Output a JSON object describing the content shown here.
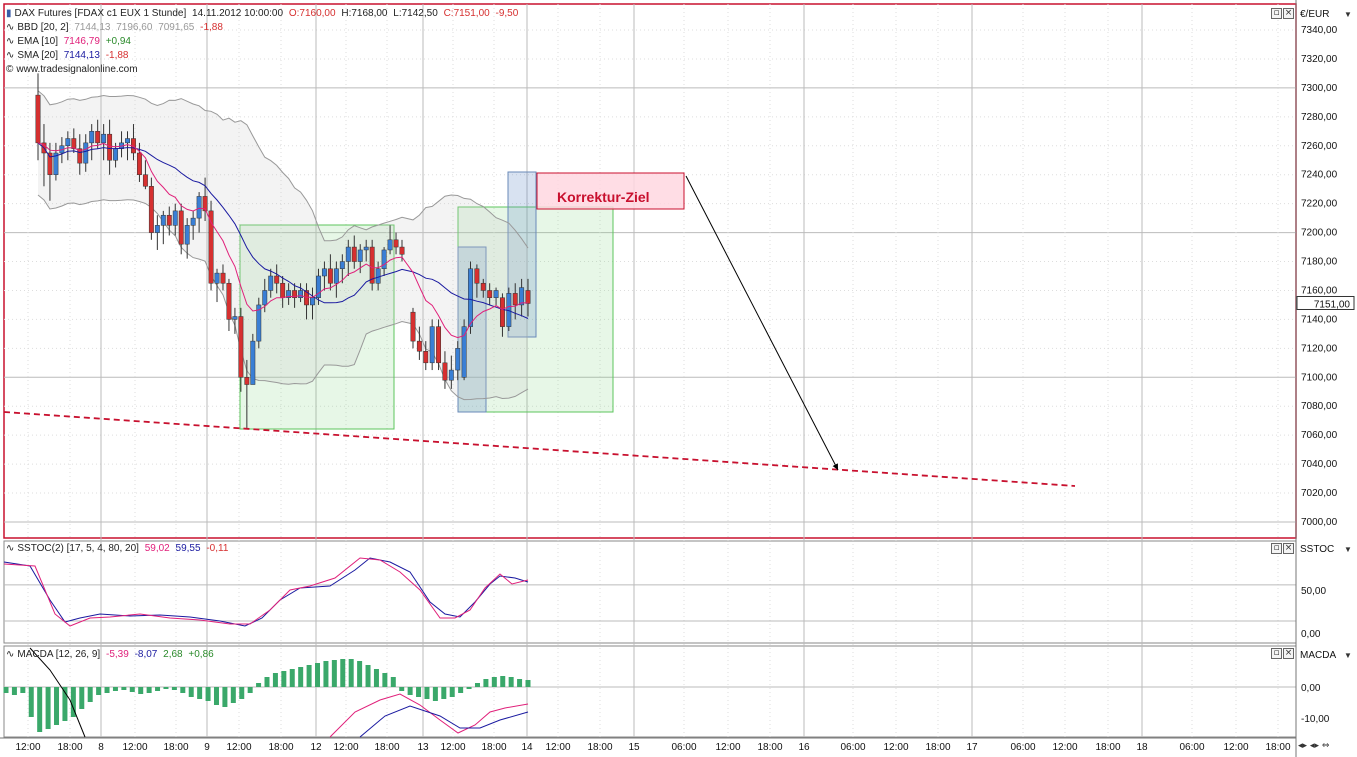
{
  "legend_main": {
    "row1": {
      "name": "DAX Futures [FDAX c1 EUX  1 Stunde]",
      "date": "14.11.2012 10:00:00",
      "open": "O:7160,00",
      "high": "H:7168,00",
      "low": "L:7142,50",
      "close": "C:7151,00",
      "change": "-9,50"
    },
    "row2": {
      "name": "BBD [20, 2]",
      "v1": "7144,13",
      "v2": "7196,60",
      "v3": "7091,65",
      "v4": "-1,88"
    },
    "row3": {
      "name": "EMA [10]",
      "v1": "7146,79",
      "v2": "+0,94"
    },
    "row4": {
      "name": "SMA [20]",
      "v1": "7144,13",
      "v2": "-1,88"
    },
    "row5": {
      "name": "www.tradesignalonline.com"
    }
  },
  "legend_sstoc": {
    "name": "SSTOC(2) [17, 5, 4, 80, 20]",
    "v1": "59,02",
    "v2": "59,55",
    "v3": "-0,11"
  },
  "legend_macd": {
    "name": "MACDA [12, 26, 9]",
    "v1": "-5,39",
    "v2": "-8,07",
    "v3": "2,68",
    "v4": "+0,86"
  },
  "panel_labels": {
    "main": "€/EUR",
    "sstoc": "SSTOC",
    "macd": "MACDA"
  },
  "price_label": "7151,00",
  "callout": "Korrektur-Ziel",
  "colors": {
    "bull": "#3a7fd5",
    "bear": "#d63030",
    "ema": "#e0207a",
    "sma": "#1a1aa0",
    "bb": "#999999",
    "box_green": "#5cc65c",
    "box_blue": "#6a8ab8",
    "trend": "#c8102e",
    "macd_hist": "#3aa86a"
  },
  "chart_data": {
    "type": "candlestick",
    "title": "DAX Futures [FDAX c1 EUX  1 Stunde]",
    "ylim": [
      6990,
      7350
    ],
    "yticks": [
      "7000,00",
      "7020,00",
      "7040,00",
      "7060,00",
      "7080,00",
      "7100,00",
      "7120,00",
      "7140,00",
      "7160,00",
      "7180,00",
      "7200,00",
      "7220,00",
      "7240,00",
      "7260,00",
      "7280,00",
      "7300,00",
      "7320,00",
      "7340,00"
    ],
    "xticks": [
      "12:00",
      "18:00",
      "8",
      "12:00",
      "18:00",
      "9",
      "12:00",
      "18:00",
      "12",
      "12:00",
      "18:00",
      "13",
      "12:00",
      "18:00",
      "14",
      "12:00",
      "18:00",
      "15",
      "06:00",
      "12:00",
      "18:00",
      "16",
      "06:00",
      "12:00",
      "18:00",
      "17",
      "06:00",
      "12:00",
      "18:00",
      "18",
      "06:00",
      "12:00",
      "18:00"
    ],
    "candles": [
      {
        "o": 7295,
        "h": 7310,
        "l": 7250,
        "c": 7262
      },
      {
        "o": 7262,
        "h": 7275,
        "l": 7232,
        "c": 7255
      },
      {
        "o": 7255,
        "h": 7262,
        "l": 7222,
        "c": 7240
      },
      {
        "o": 7240,
        "h": 7262,
        "l": 7236,
        "c": 7255
      },
      {
        "o": 7255,
        "h": 7266,
        "l": 7248,
        "c": 7260
      },
      {
        "o": 7260,
        "h": 7270,
        "l": 7250,
        "c": 7265
      },
      {
        "o": 7265,
        "h": 7272,
        "l": 7255,
        "c": 7258
      },
      {
        "o": 7258,
        "h": 7268,
        "l": 7240,
        "c": 7248
      },
      {
        "o": 7248,
        "h": 7268,
        "l": 7242,
        "c": 7262
      },
      {
        "o": 7262,
        "h": 7275,
        "l": 7250,
        "c": 7270
      },
      {
        "o": 7270,
        "h": 7278,
        "l": 7258,
        "c": 7262
      },
      {
        "o": 7262,
        "h": 7275,
        "l": 7250,
        "c": 7268
      },
      {
        "o": 7268,
        "h": 7278,
        "l": 7240,
        "c": 7250
      },
      {
        "o": 7250,
        "h": 7262,
        "l": 7245,
        "c": 7258
      },
      {
        "o": 7258,
        "h": 7270,
        "l": 7252,
        "c": 7262
      },
      {
        "o": 7262,
        "h": 7270,
        "l": 7250,
        "c": 7265
      },
      {
        "o": 7265,
        "h": 7275,
        "l": 7250,
        "c": 7255
      },
      {
        "o": 7255,
        "h": 7262,
        "l": 7235,
        "c": 7240
      },
      {
        "o": 7240,
        "h": 7250,
        "l": 7230,
        "c": 7232
      },
      {
        "o": 7232,
        "h": 7238,
        "l": 7195,
        "c": 7200
      },
      {
        "o": 7200,
        "h": 7212,
        "l": 7188,
        "c": 7205
      },
      {
        "o": 7205,
        "h": 7215,
        "l": 7192,
        "c": 7212
      },
      {
        "o": 7212,
        "h": 7218,
        "l": 7198,
        "c": 7205
      },
      {
        "o": 7205,
        "h": 7220,
        "l": 7198,
        "c": 7215
      },
      {
        "o": 7215,
        "h": 7220,
        "l": 7185,
        "c": 7192
      },
      {
        "o": 7192,
        "h": 7210,
        "l": 7182,
        "c": 7205
      },
      {
        "o": 7205,
        "h": 7215,
        "l": 7195,
        "c": 7210
      },
      {
        "o": 7210,
        "h": 7228,
        "l": 7200,
        "c": 7225
      },
      {
        "o": 7225,
        "h": 7238,
        "l": 7208,
        "c": 7215
      },
      {
        "o": 7215,
        "h": 7222,
        "l": 7160,
        "c": 7165
      },
      {
        "o": 7165,
        "h": 7175,
        "l": 7152,
        "c": 7172
      },
      {
        "o": 7172,
        "h": 7178,
        "l": 7160,
        "c": 7165
      },
      {
        "o": 7165,
        "h": 7168,
        "l": 7132,
        "c": 7140
      },
      {
        "o": 7140,
        "h": 7148,
        "l": 7130,
        "c": 7142
      },
      {
        "o": 7142,
        "h": 7148,
        "l": 7090,
        "c": 7100
      },
      {
        "o": 7100,
        "h": 7112,
        "l": 7065,
        "c": 7095
      },
      {
        "o": 7095,
        "h": 7130,
        "l": 7095,
        "c": 7125
      },
      {
        "o": 7125,
        "h": 7155,
        "l": 7120,
        "c": 7150
      },
      {
        "o": 7150,
        "h": 7168,
        "l": 7145,
        "c": 7160
      },
      {
        "o": 7160,
        "h": 7175,
        "l": 7155,
        "c": 7170
      },
      {
        "o": 7170,
        "h": 7178,
        "l": 7158,
        "c": 7165
      },
      {
        "o": 7165,
        "h": 7170,
        "l": 7148,
        "c": 7155
      },
      {
        "o": 7155,
        "h": 7165,
        "l": 7150,
        "c": 7160
      },
      {
        "o": 7160,
        "h": 7165,
        "l": 7148,
        "c": 7155
      },
      {
        "o": 7155,
        "h": 7165,
        "l": 7152,
        "c": 7160
      },
      {
        "o": 7160,
        "h": 7165,
        "l": 7140,
        "c": 7150
      },
      {
        "o": 7150,
        "h": 7162,
        "l": 7140,
        "c": 7155
      },
      {
        "o": 7155,
        "h": 7175,
        "l": 7150,
        "c": 7170
      },
      {
        "o": 7170,
        "h": 7180,
        "l": 7160,
        "c": 7175
      },
      {
        "o": 7175,
        "h": 7185,
        "l": 7160,
        "c": 7165
      },
      {
        "o": 7165,
        "h": 7180,
        "l": 7155,
        "c": 7175
      },
      {
        "o": 7175,
        "h": 7185,
        "l": 7165,
        "c": 7180
      },
      {
        "o": 7180,
        "h": 7195,
        "l": 7170,
        "c": 7190
      },
      {
        "o": 7190,
        "h": 7198,
        "l": 7175,
        "c": 7180
      },
      {
        "o": 7180,
        "h": 7192,
        "l": 7172,
        "c": 7188
      },
      {
        "o": 7188,
        "h": 7195,
        "l": 7180,
        "c": 7190
      },
      {
        "o": 7190,
        "h": 7195,
        "l": 7160,
        "c": 7165
      },
      {
        "o": 7165,
        "h": 7180,
        "l": 7160,
        "c": 7175
      },
      {
        "o": 7175,
        "h": 7190,
        "l": 7170,
        "c": 7188
      },
      {
        "o": 7188,
        "h": 7205,
        "l": 7185,
        "c": 7195
      },
      {
        "o": 7195,
        "h": 7200,
        "l": 7185,
        "c": 7190
      },
      {
        "o": 7190,
        "h": 7195,
        "l": 7180,
        "c": 7185
      },
      {
        "o": 7145,
        "h": 7148,
        "l": 7120,
        "c": 7125
      },
      {
        "o": 7125,
        "h": 7135,
        "l": 7112,
        "c": 7118
      },
      {
        "o": 7118,
        "h": 7125,
        "l": 7105,
        "c": 7110
      },
      {
        "o": 7110,
        "h": 7140,
        "l": 7105,
        "c": 7135
      },
      {
        "o": 7135,
        "h": 7140,
        "l": 7105,
        "c": 7110
      },
      {
        "o": 7110,
        "h": 7118,
        "l": 7092,
        "c": 7098
      },
      {
        "o": 7098,
        "h": 7115,
        "l": 7092,
        "c": 7105
      },
      {
        "o": 7105,
        "h": 7125,
        "l": 7098,
        "c": 7120
      },
      {
        "o": 7100,
        "h": 7140,
        "l": 7098,
        "c": 7135
      },
      {
        "o": 7135,
        "h": 7180,
        "l": 7130,
        "c": 7175
      },
      {
        "o": 7175,
        "h": 7178,
        "l": 7155,
        "c": 7165
      },
      {
        "o": 7165,
        "h": 7168,
        "l": 7155,
        "c": 7160
      },
      {
        "o": 7160,
        "h": 7165,
        "l": 7150,
        "c": 7155
      },
      {
        "o": 7155,
        "h": 7162,
        "l": 7150,
        "c": 7160
      },
      {
        "o": 7155,
        "h": 7158,
        "l": 7128,
        "c": 7135
      },
      {
        "o": 7135,
        "h": 7162,
        "l": 7132,
        "c": 7158
      },
      {
        "o": 7158,
        "h": 7165,
        "l": 7140,
        "c": 7150
      },
      {
        "o": 7150,
        "h": 7168,
        "l": 7142,
        "c": 7162
      },
      {
        "o": 7160,
        "h": 7168,
        "l": 7142,
        "c": 7151
      }
    ]
  }
}
